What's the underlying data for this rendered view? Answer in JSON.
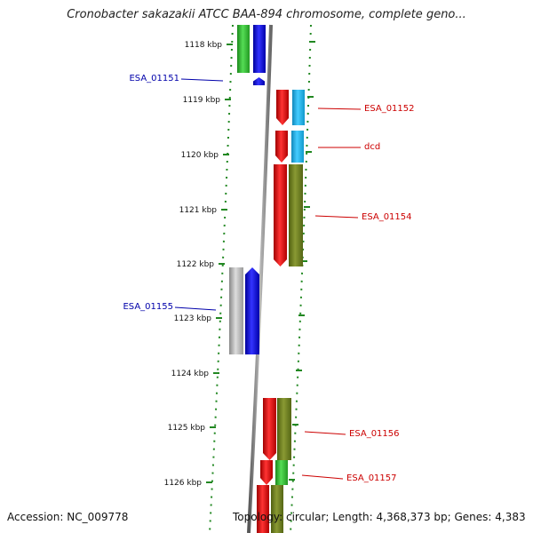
{
  "title": "Cronobacter sakazakii ATCC BAA-894 chromosome, complete geno...",
  "footer": {
    "accession": "Accession: NC_009778",
    "summary": "Topology: circular; Length: 4,368,373 bp; Genes: 4,383"
  },
  "axis": {
    "ticks": [
      "1118 kbp",
      "1119 kbp",
      "1120 kbp",
      "1121 kbp",
      "1122 kbp",
      "1123 kbp",
      "1124 kbp",
      "1125 kbp",
      "1126 kbp"
    ]
  },
  "colors": {
    "red": "#ee0000",
    "blue": "#0000ee",
    "green": "#33cc33",
    "cyan": "#22bbee",
    "olive": "#778822",
    "gray": "#bbbbbb",
    "label_red": "#cc0000",
    "label_blue": "#0000aa",
    "tick_green": "#228822"
  },
  "labels": [
    {
      "text": "ESA_01151",
      "strand": "minus"
    },
    {
      "text": "ESA_01152",
      "strand": "plus"
    },
    {
      "text": "dcd",
      "strand": "plus"
    },
    {
      "text": "ESA_01154",
      "strand": "plus"
    },
    {
      "text": "ESA_01155",
      "strand": "minus"
    },
    {
      "text": "ESA_01156",
      "strand": "plus"
    },
    {
      "text": "ESA_01157",
      "strand": "plus"
    }
  ]
}
